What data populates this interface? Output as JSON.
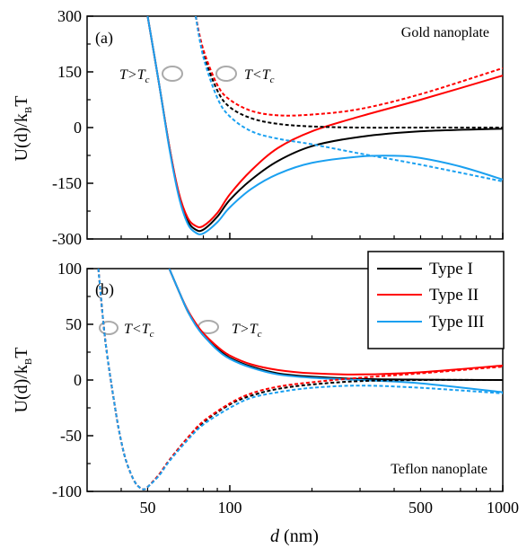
{
  "chart_data": [
    {
      "type": "line",
      "panel_label": "(a)",
      "corner_text": "Gold nanoplate",
      "ylabel": "U(d)/k",
      "ylabel_sub": "B",
      "ylabel_tail": "T",
      "xscale": "log",
      "xlim": [
        30,
        1000
      ],
      "ylim": [
        -300,
        300
      ],
      "yticks": [
        -300,
        -150,
        0,
        150,
        300
      ],
      "annotations": [
        {
          "main": "T>T",
          "sub": "c"
        },
        {
          "main": "T<T",
          "sub": "c"
        }
      ],
      "series": [
        {
          "style": "solid",
          "color": "#000000",
          "x": [
            50,
            55,
            60,
            65,
            70,
            75,
            80,
            90,
            100,
            120,
            150,
            200,
            300,
            500,
            1000
          ],
          "y": [
            300,
            120,
            -50,
            -180,
            -250,
            -275,
            -275,
            -240,
            -195,
            -140,
            -90,
            -50,
            -25,
            -10,
            -3
          ]
        },
        {
          "style": "solid",
          "color": "#ff0000",
          "x": [
            50,
            55,
            60,
            65,
            70,
            75,
            80,
            90,
            100,
            120,
            150,
            200,
            300,
            500,
            1000
          ],
          "y": [
            300,
            120,
            -50,
            -175,
            -242,
            -265,
            -265,
            -230,
            -180,
            -115,
            -55,
            -10,
            30,
            75,
            140
          ]
        },
        {
          "style": "solid",
          "color": "#1aa0f0",
          "x": [
            50,
            55,
            60,
            65,
            70,
            75,
            80,
            90,
            100,
            120,
            150,
            200,
            300,
            400,
            500,
            700,
            1000
          ],
          "y": [
            300,
            120,
            -55,
            -185,
            -258,
            -283,
            -285,
            -255,
            -215,
            -165,
            -125,
            -95,
            -78,
            -76,
            -82,
            -105,
            -140
          ]
        },
        {
          "style": "dashed",
          "color": "#000000",
          "x": [
            75,
            80,
            90,
            100,
            120,
            150,
            200,
            300,
            500,
            1000
          ],
          "y": [
            300,
            200,
            100,
            55,
            25,
            10,
            3,
            0,
            0,
            0
          ]
        },
        {
          "style": "dashed",
          "color": "#ff0000",
          "x": [
            75,
            80,
            90,
            100,
            120,
            150,
            200,
            300,
            500,
            1000
          ],
          "y": [
            300,
            210,
            115,
            75,
            45,
            33,
            35,
            50,
            90,
            160
          ]
        },
        {
          "style": "dashed",
          "color": "#1aa0f0",
          "x": [
            75,
            80,
            90,
            100,
            120,
            150,
            200,
            300,
            500,
            1000
          ],
          "y": [
            300,
            190,
            80,
            30,
            -10,
            -30,
            -45,
            -70,
            -100,
            -145
          ]
        }
      ]
    },
    {
      "type": "line",
      "panel_label": "(b)",
      "corner_text": "Teflon nanoplate",
      "ylabel": "U(d)/k",
      "ylabel_sub": "B",
      "ylabel_tail": "T",
      "xlabel": "d",
      "xlabel_unit": "(nm)",
      "xscale": "log",
      "xlim": [
        30,
        1000
      ],
      "ylim": [
        -100,
        100
      ],
      "yticks": [
        -100,
        -50,
        0,
        50,
        100
      ],
      "xticks": [
        50,
        100,
        500,
        1000
      ],
      "annotations": [
        {
          "main": "T<T",
          "sub": "c"
        },
        {
          "main": "T>T",
          "sub": "c"
        }
      ],
      "legend": {
        "position": "top-right",
        "entries": [
          "Type I",
          "Type II",
          "Type III"
        ]
      },
      "series": [
        {
          "style": "solid",
          "color": "#000000",
          "x": [
            60,
            65,
            70,
            75,
            80,
            90,
            100,
            120,
            150,
            200,
            300,
            500,
            1000
          ],
          "y": [
            100,
            80,
            62,
            50,
            40,
            28,
            20,
            12,
            6,
            3,
            1,
            0.3,
            0
          ]
        },
        {
          "style": "solid",
          "color": "#ff0000",
          "x": [
            60,
            65,
            70,
            75,
            80,
            90,
            100,
            120,
            150,
            200,
            300,
            500,
            1000
          ],
          "y": [
            100,
            80,
            63,
            51,
            42,
            30,
            22,
            14,
            9,
            6,
            5,
            7,
            13
          ]
        },
        {
          "style": "solid",
          "color": "#1aa0f0",
          "x": [
            60,
            65,
            70,
            75,
            80,
            90,
            100,
            120,
            150,
            200,
            300,
            500,
            1000
          ],
          "y": [
            100,
            80,
            62,
            49,
            40,
            27,
            19,
            11,
            5,
            2,
            0,
            -3,
            -11
          ]
        },
        {
          "style": "dashed",
          "color": "#000000",
          "x": [
            33,
            35,
            38,
            40,
            42,
            45,
            48,
            50,
            55,
            60,
            70,
            80,
            100,
            120,
            150,
            200,
            300,
            500,
            1000
          ],
          "y": [
            100,
            35,
            -25,
            -55,
            -75,
            -92,
            -98,
            -96,
            -85,
            -72,
            -52,
            -38,
            -22,
            -14,
            -8,
            -4,
            -1,
            0,
            0
          ]
        },
        {
          "style": "dashed",
          "color": "#ff0000",
          "x": [
            33,
            35,
            38,
            40,
            42,
            45,
            48,
            50,
            55,
            60,
            70,
            80,
            100,
            120,
            150,
            200,
            300,
            500,
            1000
          ],
          "y": [
            100,
            35,
            -25,
            -55,
            -75,
            -92,
            -98,
            -96,
            -85,
            -72,
            -52,
            -37,
            -21,
            -12,
            -6,
            -2,
            2,
            6,
            12
          ]
        },
        {
          "style": "dashed",
          "color": "#1aa0f0",
          "x": [
            33,
            35,
            38,
            40,
            42,
            45,
            48,
            50,
            55,
            60,
            70,
            80,
            100,
            120,
            150,
            200,
            300,
            500,
            1000
          ],
          "y": [
            100,
            35,
            -25,
            -55,
            -75,
            -92,
            -98,
            -96,
            -86,
            -73,
            -54,
            -40,
            -25,
            -16,
            -11,
            -7,
            -5,
            -7,
            -12
          ]
        }
      ]
    }
  ]
}
